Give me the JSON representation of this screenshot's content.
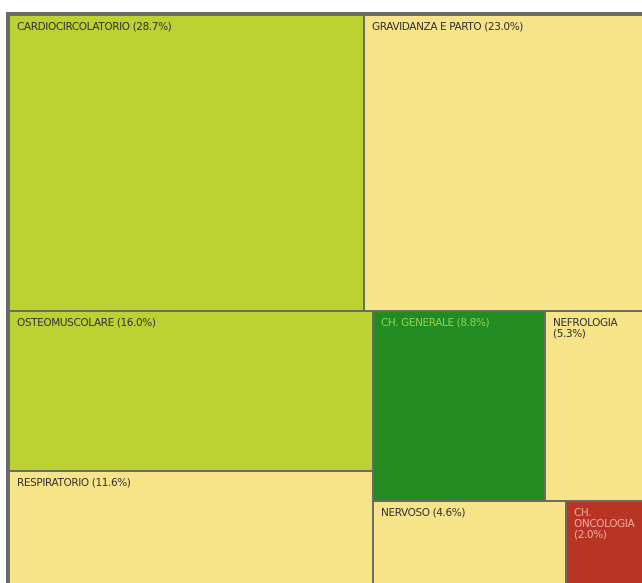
{
  "chart_data": {
    "type": "treemap",
    "categories": [
      "CARDIOCIRCOLATORIO",
      "GRAVIDANZA E PARTO",
      "OSTEOMUSCOLARE",
      "RESPIRATORIO",
      "CH. GENERALE",
      "NEFROLOGIA",
      "NERVOSO",
      "CH. ONCOLOGIA"
    ],
    "values": [
      28.7,
      23.0,
      16.0,
      11.6,
      8.8,
      5.3,
      4.6,
      2.0
    ],
    "value_labels": [
      "(28.7%)",
      "(23.0%)",
      "(16.0%)",
      "(11.6%)",
      "(8.8%)",
      "(5.3%)",
      "(4.6%)",
      "(2.0%)"
    ],
    "colors": [
      "#bcd232",
      "#f7e388",
      "#bcd232",
      "#f7e388",
      "#228b22",
      "#f7e388",
      "#f7e388",
      "#b83424"
    ]
  }
}
